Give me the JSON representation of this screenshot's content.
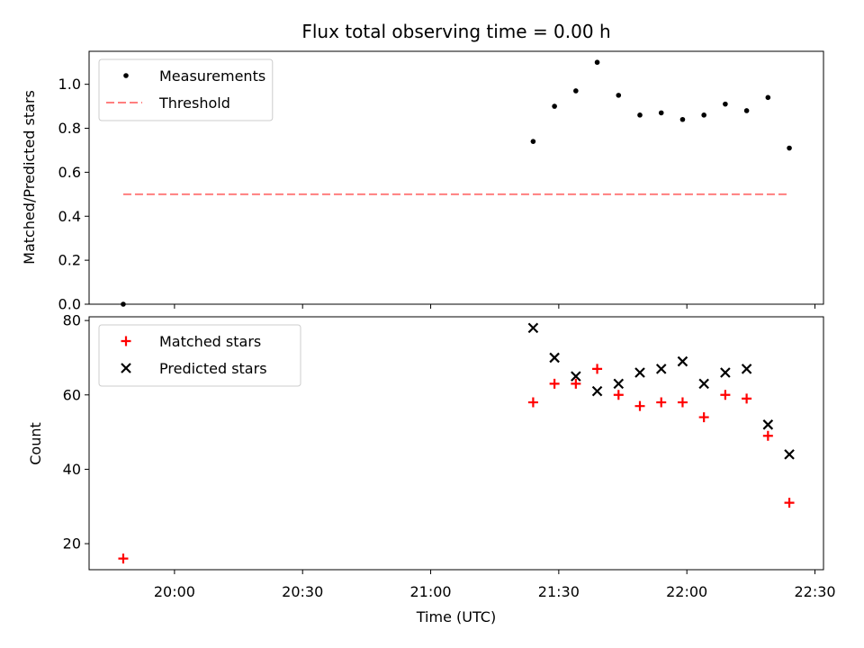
{
  "chart_data": [
    {
      "type": "scatter",
      "title": "Flux total observing time = 0.00 h",
      "xlabel": "",
      "ylabel": "Matched/Predicted stars",
      "ylim": [
        0.0,
        1.15
      ],
      "yticks": [
        "0.0",
        "0.2",
        "0.4",
        "0.6",
        "0.8",
        "1.0"
      ],
      "xlim": [
        "19:40",
        "22:32"
      ],
      "grid": false,
      "legend_position": "upper-left",
      "series": [
        {
          "name": "Measurements",
          "marker": "dot",
          "color": "#000000",
          "points": [
            [
              "19:48",
              0.0
            ],
            [
              "21:24",
              0.74
            ],
            [
              "21:29",
              0.9
            ],
            [
              "21:34",
              0.97
            ],
            [
              "21:39",
              1.1
            ],
            [
              "21:44",
              0.95
            ],
            [
              "21:49",
              0.86
            ],
            [
              "21:54",
              0.87
            ],
            [
              "21:59",
              0.84
            ],
            [
              "22:04",
              0.86
            ],
            [
              "22:09",
              0.91
            ],
            [
              "22:14",
              0.88
            ],
            [
              "22:19",
              0.94
            ],
            [
              "22:24",
              0.71
            ]
          ]
        },
        {
          "name": "Threshold",
          "marker": "dashed-line",
          "color": "#ff7f7f",
          "points": [
            [
              "19:48",
              0.5
            ],
            [
              "22:24",
              0.5
            ]
          ]
        }
      ]
    },
    {
      "type": "scatter",
      "title": "",
      "xlabel": "Time (UTC)",
      "ylabel": "Count",
      "ylim": [
        13,
        81
      ],
      "yticks": [
        "20",
        "40",
        "60",
        "80"
      ],
      "xlim": [
        "19:40",
        "22:32"
      ],
      "xticks": [
        "20:00",
        "20:30",
        "21:00",
        "21:30",
        "22:00",
        "22:30"
      ],
      "grid": false,
      "legend_position": "upper-left",
      "series": [
        {
          "name": "Matched stars",
          "marker": "plus",
          "color": "#ff0000",
          "points": [
            [
              "19:48",
              16
            ],
            [
              "21:24",
              58
            ],
            [
              "21:29",
              63
            ],
            [
              "21:34",
              63
            ],
            [
              "21:39",
              67
            ],
            [
              "21:44",
              60
            ],
            [
              "21:49",
              57
            ],
            [
              "21:54",
              58
            ],
            [
              "21:59",
              58
            ],
            [
              "22:04",
              54
            ],
            [
              "22:09",
              60
            ],
            [
              "22:14",
              59
            ],
            [
              "22:19",
              49
            ],
            [
              "22:24",
              31
            ]
          ]
        },
        {
          "name": "Predicted stars",
          "marker": "x",
          "color": "#000000",
          "points": [
            [
              "21:24",
              78
            ],
            [
              "21:29",
              70
            ],
            [
              "21:34",
              65
            ],
            [
              "21:39",
              61
            ],
            [
              "21:44",
              63
            ],
            [
              "21:49",
              66
            ],
            [
              "21:54",
              67
            ],
            [
              "21:59",
              69
            ],
            [
              "22:04",
              63
            ],
            [
              "22:09",
              66
            ],
            [
              "22:14",
              67
            ],
            [
              "22:19",
              52
            ],
            [
              "22:24",
              44
            ]
          ]
        }
      ]
    }
  ]
}
